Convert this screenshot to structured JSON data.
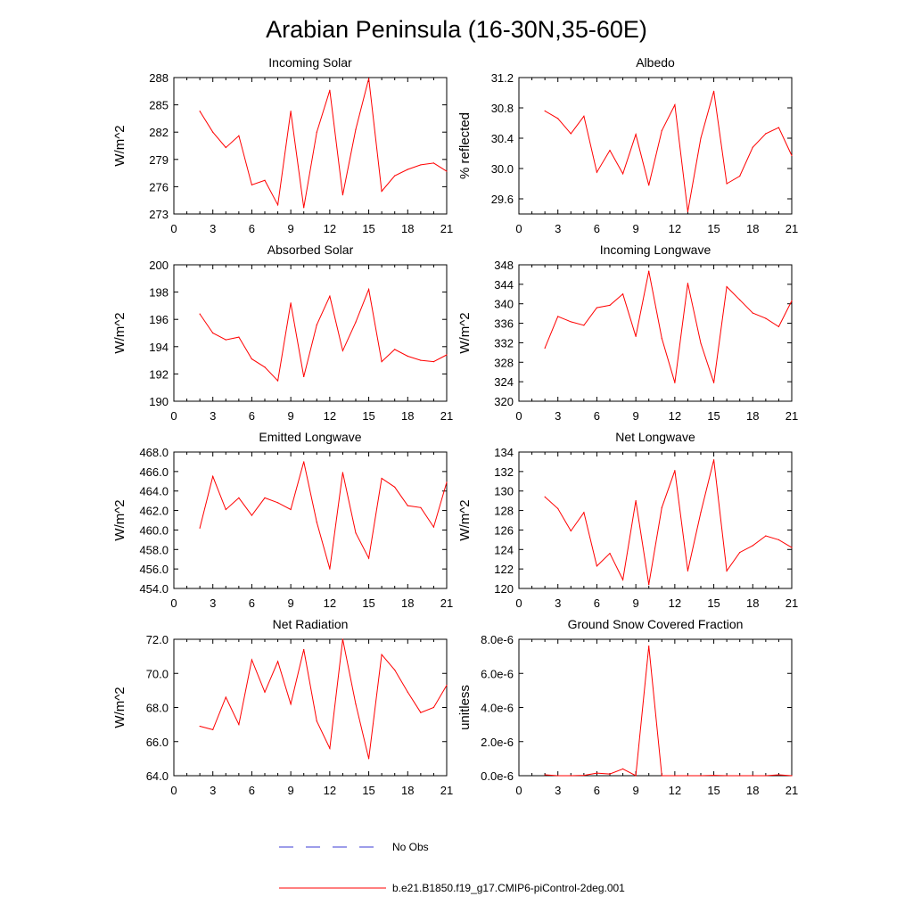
{
  "figure": {
    "title": "Arabian Peninsula (16-30N,35-60E)",
    "legend": [
      {
        "label": "No Obs",
        "color": "#3b3bd6",
        "style": "dashed"
      },
      {
        "label": "b.e21.B1850.f19_g17.CMIP6-piControl-2deg.001",
        "color": "#ff0000",
        "style": "solid"
      }
    ],
    "series_color": "#ff0000"
  },
  "chart_data": [
    {
      "type": "line",
      "title": "Incoming Solar",
      "ylabel": "W/m^2",
      "xlim": [
        0,
        21
      ],
      "xticks": [
        0,
        3,
        6,
        9,
        12,
        15,
        18,
        21
      ],
      "xtick_labels": [
        "0",
        "3",
        "6",
        "9",
        "12",
        "15",
        "18",
        "21"
      ],
      "ylim": [
        273,
        288
      ],
      "yticks": [
        273,
        276,
        279,
        282,
        285,
        288
      ],
      "ytick_labels": [
        "273",
        "276",
        "279",
        "282",
        "285",
        "288"
      ],
      "x": [
        2,
        3,
        4,
        5,
        6,
        7,
        8,
        9,
        10,
        11,
        12,
        13,
        14,
        15,
        16,
        17,
        18,
        19,
        20,
        21
      ],
      "y": [
        284.3,
        282.0,
        280.3,
        281.6,
        276.2,
        276.7,
        274.0,
        284.3,
        273.7,
        282.0,
        286.6,
        275.1,
        282.3,
        287.9,
        275.5,
        277.2,
        277.9,
        278.4,
        278.6,
        277.7
      ]
    },
    {
      "type": "line",
      "title": "Albedo",
      "ylabel": "% reflected",
      "xlim": [
        0,
        21
      ],
      "xticks": [
        0,
        3,
        6,
        9,
        12,
        15,
        18,
        21
      ],
      "xtick_labels": [
        "0",
        "3",
        "6",
        "9",
        "12",
        "15",
        "18",
        "21"
      ],
      "ylim": [
        29.4,
        31.2
      ],
      "yticks": [
        29.6,
        30.0,
        30.4,
        30.8,
        31.2
      ],
      "ytick_labels": [
        "29.6",
        "30.0",
        "30.4",
        "30.8",
        "31.2"
      ],
      "x": [
        2,
        3,
        4,
        5,
        6,
        7,
        8,
        9,
        10,
        11,
        12,
        13,
        14,
        15,
        16,
        17,
        18,
        19,
        20,
        21
      ],
      "y": [
        30.76,
        30.66,
        30.46,
        30.69,
        29.95,
        30.24,
        29.93,
        30.45,
        29.78,
        30.5,
        30.84,
        29.43,
        30.4,
        31.02,
        29.8,
        29.9,
        30.28,
        30.46,
        30.54,
        30.17
      ]
    },
    {
      "type": "line",
      "title": "Absorbed Solar",
      "ylabel": "W/m^2",
      "xlim": [
        0,
        21
      ],
      "xticks": [
        0,
        3,
        6,
        9,
        12,
        15,
        18,
        21
      ],
      "xtick_labels": [
        "0",
        "3",
        "6",
        "9",
        "12",
        "15",
        "18",
        "21"
      ],
      "ylim": [
        190,
        200
      ],
      "yticks": [
        190,
        192,
        194,
        196,
        198,
        200
      ],
      "ytick_labels": [
        "190",
        "192",
        "194",
        "196",
        "198",
        "200"
      ],
      "x": [
        2,
        3,
        4,
        5,
        6,
        7,
        8,
        9,
        10,
        11,
        12,
        13,
        14,
        15,
        16,
        17,
        18,
        19,
        20,
        21
      ],
      "y": [
        196.4,
        195.0,
        194.5,
        194.7,
        193.1,
        192.5,
        191.5,
        197.2,
        191.8,
        195.6,
        197.7,
        193.7,
        195.8,
        198.2,
        192.9,
        193.8,
        193.3,
        193.0,
        192.9,
        193.4
      ]
    },
    {
      "type": "line",
      "title": "Incoming Longwave",
      "ylabel": "W/m^2",
      "xlim": [
        0,
        21
      ],
      "xticks": [
        0,
        3,
        6,
        9,
        12,
        15,
        18,
        21
      ],
      "xtick_labels": [
        "0",
        "3",
        "6",
        "9",
        "12",
        "15",
        "18",
        "21"
      ],
      "ylim": [
        320,
        348
      ],
      "yticks": [
        320,
        324,
        328,
        332,
        336,
        340,
        344,
        348
      ],
      "ytick_labels": [
        "320",
        "324",
        "328",
        "332",
        "336",
        "340",
        "344",
        "348"
      ],
      "x": [
        2,
        3,
        4,
        5,
        6,
        7,
        8,
        9,
        10,
        11,
        12,
        13,
        14,
        15,
        16,
        17,
        18,
        19,
        20,
        21
      ],
      "y": [
        330.9,
        337.4,
        336.3,
        335.6,
        339.2,
        339.7,
        342.0,
        333.3,
        346.7,
        332.9,
        323.8,
        344.2,
        331.9,
        323.8,
        343.5,
        340.8,
        338.1,
        337.0,
        335.3,
        340.6
      ]
    },
    {
      "type": "line",
      "title": "Emitted Longwave",
      "ylabel": "W/m^2",
      "xlim": [
        0,
        21
      ],
      "xticks": [
        0,
        3,
        6,
        9,
        12,
        15,
        18,
        21
      ],
      "xtick_labels": [
        "0",
        "3",
        "6",
        "9",
        "12",
        "15",
        "18",
        "21"
      ],
      "ylim": [
        454,
        468
      ],
      "yticks": [
        454,
        456,
        458,
        460,
        462,
        464,
        466,
        468
      ],
      "ytick_labels": [
        "454.0",
        "456.0",
        "458.0",
        "460.0",
        "462.0",
        "464.0",
        "466.0",
        "468.0"
      ],
      "x": [
        2,
        3,
        4,
        5,
        6,
        7,
        8,
        9,
        10,
        11,
        12,
        13,
        14,
        15,
        16,
        17,
        18,
        19,
        20,
        21
      ],
      "y": [
        460.2,
        465.5,
        462.1,
        463.3,
        461.5,
        463.3,
        462.8,
        462.1,
        467.0,
        460.8,
        456.0,
        465.9,
        459.7,
        457.1,
        465.3,
        464.4,
        462.5,
        462.3,
        460.3,
        464.9
      ]
    },
    {
      "type": "line",
      "title": "Net Longwave",
      "ylabel": "W/m^2",
      "xlim": [
        0,
        21
      ],
      "xticks": [
        0,
        3,
        6,
        9,
        12,
        15,
        18,
        21
      ],
      "xtick_labels": [
        "0",
        "3",
        "6",
        "9",
        "12",
        "15",
        "18",
        "21"
      ],
      "ylim": [
        120,
        134
      ],
      "yticks": [
        120,
        122,
        124,
        126,
        128,
        130,
        132,
        134
      ],
      "ytick_labels": [
        "120",
        "122",
        "124",
        "126",
        "128",
        "130",
        "132",
        "134"
      ],
      "x": [
        2,
        3,
        4,
        5,
        6,
        7,
        8,
        9,
        10,
        11,
        12,
        13,
        14,
        15,
        16,
        17,
        18,
        19,
        20,
        21
      ],
      "y": [
        129.4,
        128.2,
        125.9,
        127.8,
        122.3,
        123.6,
        120.9,
        129.0,
        120.4,
        128.3,
        132.1,
        121.8,
        127.8,
        133.2,
        121.8,
        123.7,
        124.4,
        125.4,
        125.0,
        124.2
      ]
    },
    {
      "type": "line",
      "title": "Net Radiation",
      "ylabel": "W/m^2",
      "xlim": [
        0,
        21
      ],
      "xticks": [
        0,
        3,
        6,
        9,
        12,
        15,
        18,
        21
      ],
      "xtick_labels": [
        "0",
        "3",
        "6",
        "9",
        "12",
        "15",
        "18",
        "21"
      ],
      "ylim": [
        64,
        72
      ],
      "yticks": [
        64,
        66,
        68,
        70,
        72
      ],
      "ytick_labels": [
        "64.0",
        "66.0",
        "68.0",
        "70.0",
        "72.0"
      ],
      "x": [
        2,
        3,
        4,
        5,
        6,
        7,
        8,
        9,
        10,
        11,
        12,
        13,
        14,
        15,
        16,
        17,
        18,
        19,
        20,
        21
      ],
      "y": [
        66.9,
        66.7,
        68.6,
        67.0,
        70.8,
        68.9,
        70.7,
        68.2,
        71.4,
        67.2,
        65.6,
        72.0,
        68.2,
        65.0,
        71.1,
        70.2,
        68.9,
        67.7,
        68.0,
        69.3
      ]
    },
    {
      "type": "line",
      "title": "Ground Snow Covered Fraction",
      "ylabel": "unitless",
      "xlim": [
        0,
        21
      ],
      "xticks": [
        0,
        3,
        6,
        9,
        12,
        15,
        18,
        21
      ],
      "xtick_labels": [
        "0",
        "3",
        "6",
        "9",
        "12",
        "15",
        "18",
        "21"
      ],
      "ylim": [
        0,
        8e-06
      ],
      "yticks": [
        0,
        2e-06,
        4e-06,
        6e-06,
        8e-06
      ],
      "ytick_labels": [
        "0.0e-6",
        "2.0e-6",
        "4.0e-6",
        "6.0e-6",
        "8.0e-6"
      ],
      "x": [
        2,
        3,
        4,
        5,
        6,
        7,
        8,
        9,
        10,
        11,
        12,
        13,
        14,
        15,
        16,
        17,
        18,
        19,
        20,
        21
      ],
      "y": [
        5e-08,
        0.0,
        0.0,
        2e-08,
        1.5e-07,
        1e-07,
        4e-07,
        0.0,
        7.6e-06,
        0.0,
        0.0,
        0.0,
        0.0,
        2e-08,
        0.0,
        0.0,
        0.0,
        0.0,
        5e-08,
        0.0
      ]
    }
  ]
}
